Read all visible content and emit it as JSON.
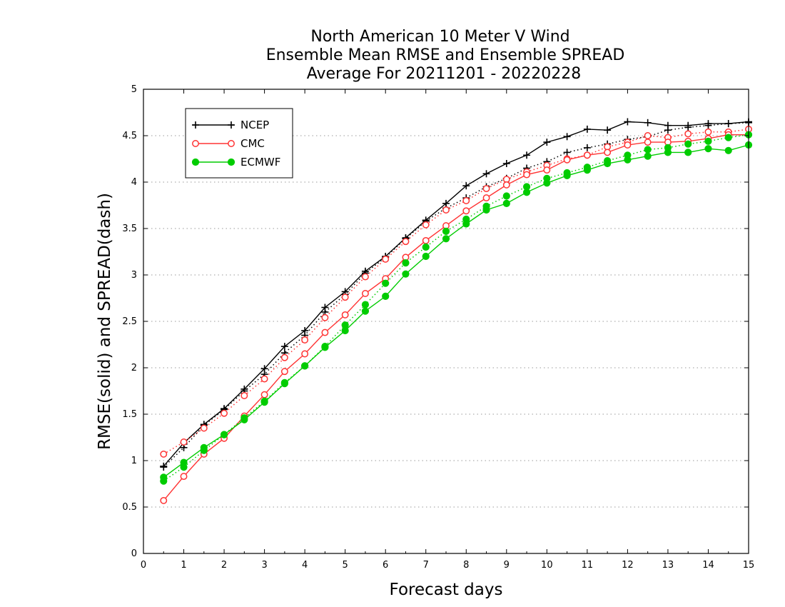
{
  "chart_data": {
    "type": "line",
    "title_lines": [
      "North American 10 Meter V Wind",
      "Ensemble Mean RMSE and Ensemble SPREAD",
      "Average For 20211201 - 20220228"
    ],
    "xlabel": "Forecast days",
    "ylabel": "RMSE(solid) and SPREAD(dash)",
    "xlim": [
      0,
      15
    ],
    "ylim": [
      0,
      5
    ],
    "x_ticks": [
      "0",
      "1",
      "2",
      "3",
      "4",
      "5",
      "6",
      "7",
      "8",
      "9",
      "10",
      "11",
      "12",
      "13",
      "14",
      "15"
    ],
    "y_ticks": [
      "0",
      "0.5",
      "1",
      "1.5",
      "2",
      "2.5",
      "3",
      "3.5",
      "4",
      "4.5",
      "5"
    ],
    "grid": "horizontal dotted",
    "legend_position": "top-left",
    "x": [
      0.5,
      1,
      1.5,
      2,
      2.5,
      3,
      3.5,
      4,
      4.5,
      5,
      5.5,
      6,
      6.5,
      7,
      7.5,
      8,
      8.5,
      9,
      9.5,
      10,
      10.5,
      11,
      11.5,
      12,
      12.5,
      13,
      13.5,
      14,
      14.5,
      15
    ],
    "series": [
      {
        "name": "NCEP",
        "color": "#000000",
        "marker": "plus",
        "rmse": [
          0.94,
          1.19,
          1.39,
          1.56,
          1.77,
          1.99,
          2.23,
          2.4,
          2.65,
          2.82,
          3.04,
          3.2,
          3.4,
          3.59,
          3.77,
          3.96,
          4.09,
          4.2,
          4.29,
          4.43,
          4.49,
          4.57,
          4.56,
          4.65,
          4.64,
          4.61,
          4.61,
          4.63,
          4.63,
          4.65
        ],
        "spread": [
          0.93,
          1.14,
          1.38,
          1.55,
          1.75,
          1.93,
          2.16,
          2.35,
          2.6,
          2.79,
          3.02,
          3.19,
          3.39,
          3.58,
          3.72,
          3.83,
          3.95,
          4.04,
          4.15,
          4.22,
          4.32,
          4.37,
          4.41,
          4.46,
          4.49,
          4.56,
          4.59,
          4.61,
          4.63,
          4.64
        ]
      },
      {
        "name": "CMC",
        "color": "#ff3333",
        "marker": "open-circle",
        "rmse": [
          0.57,
          0.83,
          1.07,
          1.24,
          1.48,
          1.71,
          1.96,
          2.15,
          2.38,
          2.57,
          2.8,
          2.96,
          3.19,
          3.37,
          3.53,
          3.69,
          3.83,
          3.97,
          4.08,
          4.13,
          4.24,
          4.29,
          4.32,
          4.4,
          4.43,
          4.43,
          4.44,
          4.47,
          4.51,
          4.51
        ],
        "spread": [
          1.07,
          1.2,
          1.35,
          1.51,
          1.7,
          1.88,
          2.11,
          2.3,
          2.54,
          2.76,
          2.98,
          3.17,
          3.36,
          3.54,
          3.7,
          3.8,
          3.93,
          4.03,
          4.11,
          4.18,
          4.25,
          4.29,
          4.38,
          4.43,
          4.5,
          4.48,
          4.52,
          4.54,
          4.54,
          4.57
        ]
      },
      {
        "name": "ECMWF",
        "color": "#00cc00",
        "marker": "filled-circle",
        "rmse": [
          0.82,
          0.98,
          1.14,
          1.28,
          1.44,
          1.63,
          1.83,
          2.02,
          2.22,
          2.4,
          2.61,
          2.77,
          3.01,
          3.2,
          3.39,
          3.55,
          3.7,
          3.77,
          3.89,
          3.99,
          4.07,
          4.13,
          4.2,
          4.24,
          4.28,
          4.32,
          4.32,
          4.36,
          4.34,
          4.4
        ],
        "spread": [
          0.78,
          0.93,
          1.11,
          1.28,
          1.46,
          1.64,
          1.84,
          2.02,
          2.23,
          2.46,
          2.68,
          2.91,
          3.13,
          3.3,
          3.47,
          3.6,
          3.74,
          3.85,
          3.95,
          4.04,
          4.1,
          4.16,
          4.23,
          4.29,
          4.35,
          4.37,
          4.41,
          4.44,
          4.48,
          4.51
        ]
      }
    ]
  }
}
